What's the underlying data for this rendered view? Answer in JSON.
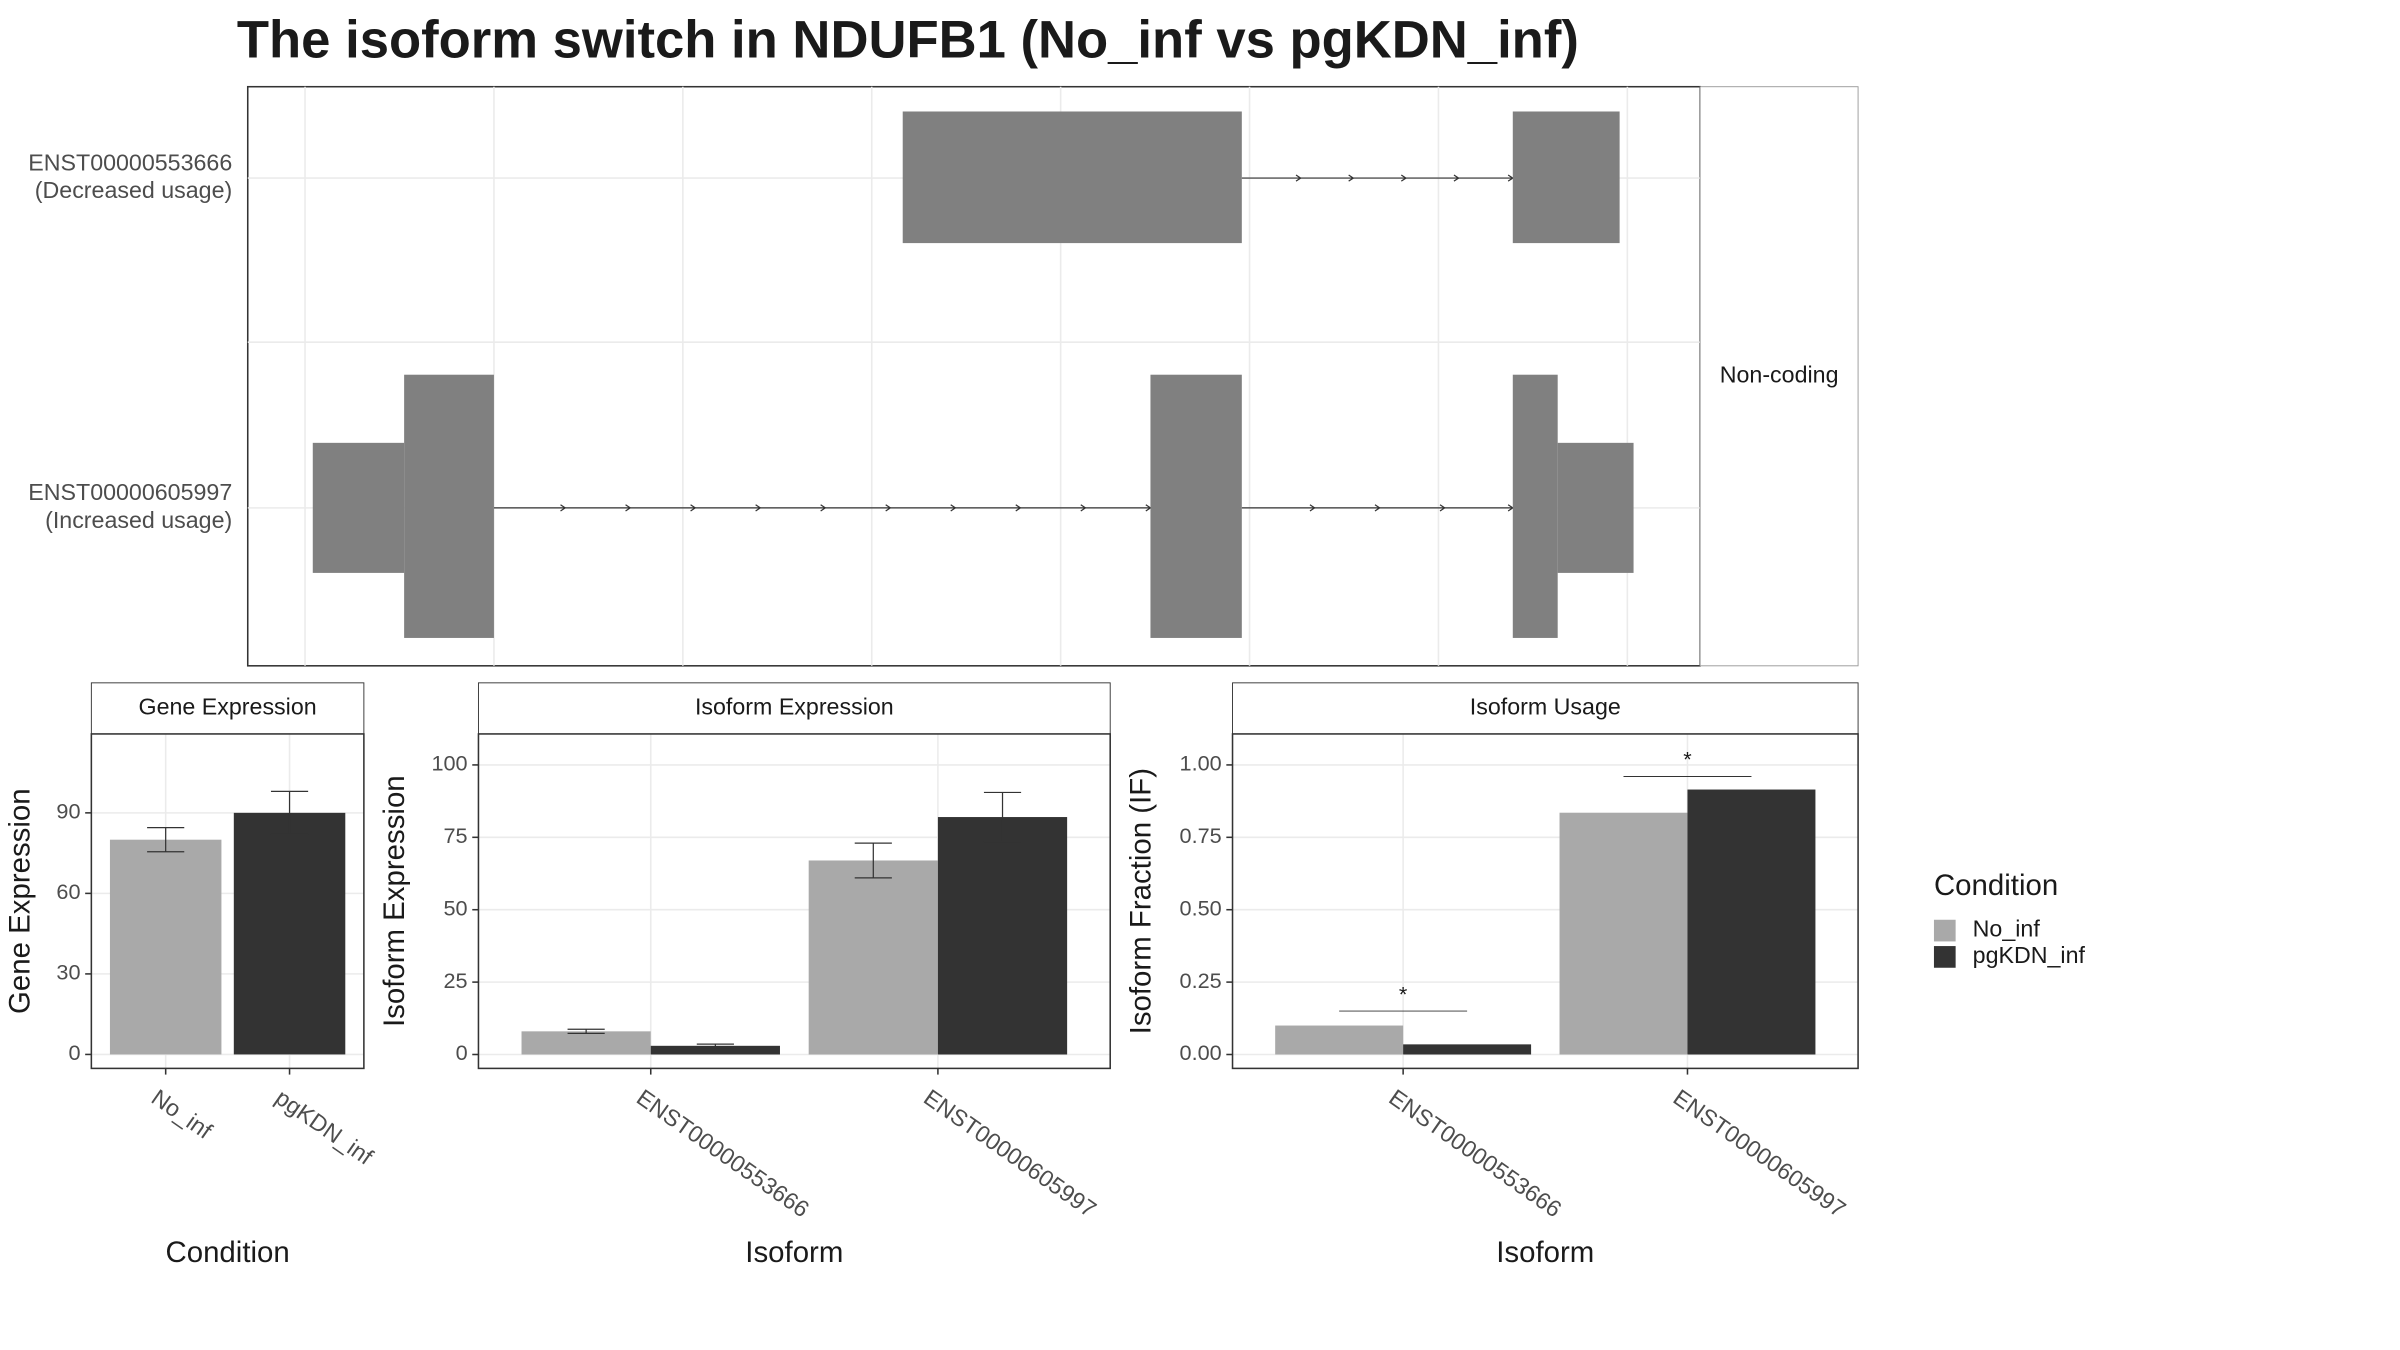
{
  "title": "The isoform switch in NDUFB1 (No_inf vs pgKDN_inf)",
  "structure": {
    "rows": [
      {
        "id": "ENST00000553666",
        "note": "(Decreased usage)"
      },
      {
        "id": "ENST00000605997",
        "note": "(Increased usage)"
      }
    ],
    "strip": "Non-coding"
  },
  "legend": {
    "title": "Condition"
  },
  "chart_data": [
    {
      "type": "bar",
      "title": "Gene Expression",
      "xlabel": "Condition",
      "ylabel": "Gene Expression",
      "categories": [
        "No_inf",
        "pgKDN_inf"
      ],
      "values": [
        80,
        90
      ],
      "errors": [
        4.5,
        8
      ],
      "colors": [
        "#a9a9a9",
        "#333333"
      ],
      "ylim": [
        -5.2,
        119.4
      ],
      "yticks": [
        0,
        30,
        60,
        90
      ],
      "grid": true
    },
    {
      "type": "bar",
      "title": "Isoform Expression",
      "xlabel": "Isoform",
      "ylabel": "Isoform Expression",
      "categories": [
        "ENST00000553666",
        "ENST00000605997"
      ],
      "series": [
        {
          "name": "No_inf",
          "color": "#a9a9a9",
          "values": [
            8,
            67
          ],
          "errors": [
            0.7,
            6
          ]
        },
        {
          "name": "pgKDN_inf",
          "color": "#333333",
          "values": [
            3,
            82
          ],
          "errors": [
            0.6,
            8.5
          ]
        }
      ],
      "ylim": [
        -4.8,
        110.7
      ],
      "yticks": [
        0,
        25,
        50,
        75,
        100
      ],
      "grid": true
    },
    {
      "type": "bar",
      "title": "Isoform Usage",
      "xlabel": "Isoform",
      "ylabel": "Isoform Fraction (IF)",
      "categories": [
        "ENST00000553666",
        "ENST00000605997"
      ],
      "series": [
        {
          "name": "No_inf",
          "color": "#a9a9a9",
          "values": [
            0.1,
            0.835
          ]
        },
        {
          "name": "pgKDN_inf",
          "color": "#333333",
          "values": [
            0.035,
            0.915
          ]
        }
      ],
      "significance": [
        {
          "label": "*",
          "y": 0.15
        },
        {
          "label": "*",
          "y": 0.96
        }
      ],
      "ylim": [
        -0.048,
        1.107
      ],
      "yticks": [
        {
          "value": 0,
          "label": "0.00"
        },
        {
          "value": 0.25,
          "label": "0.25"
        },
        {
          "value": 0.5,
          "label": "0.50"
        },
        {
          "value": 0.75,
          "label": "0.75"
        },
        {
          "value": 1,
          "label": "1.00"
        }
      ],
      "grid": true
    }
  ]
}
